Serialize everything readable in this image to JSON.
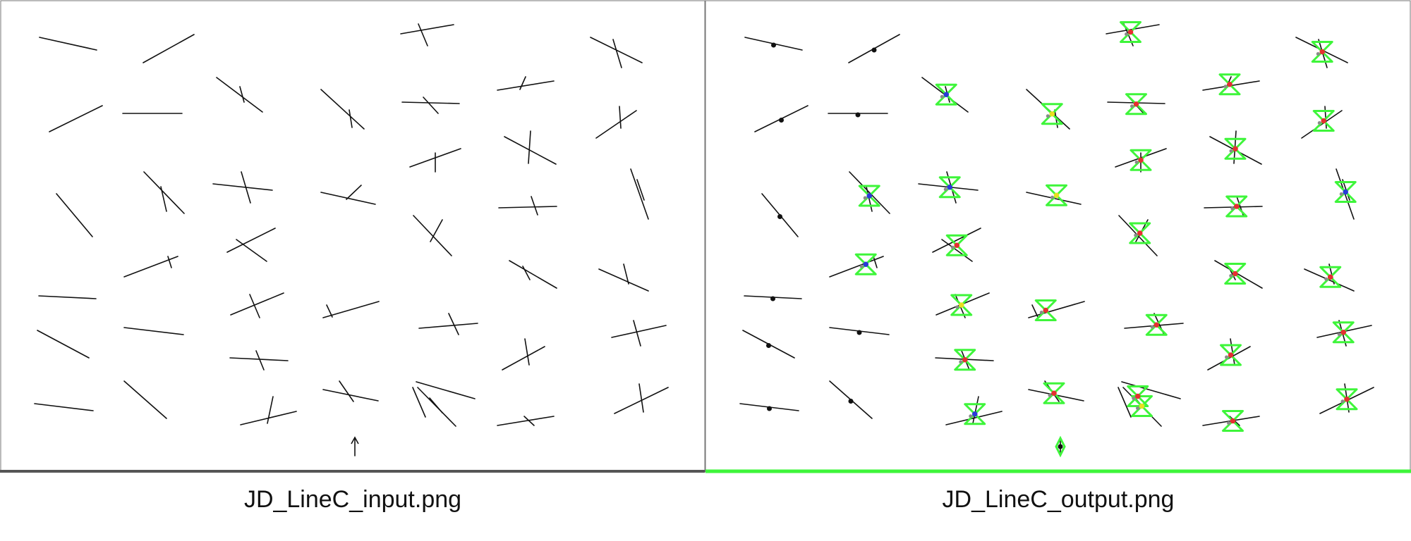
{
  "captions": {
    "input": "JD_LineC_input.png",
    "output": "JD_LineC_output.png"
  },
  "colors": {
    "stroke": "#111111",
    "highlight": "#3ef53a",
    "marker_red": "#e53030",
    "marker_blue": "#2a3ad8",
    "marker_gray": "#8a8a8a",
    "marker_yellow": "#e8e020",
    "marker_black": "#111111"
  },
  "panels": [
    "input",
    "output"
  ],
  "detections": [
    {
      "kind": "single"
    },
    {
      "kind": "single"
    },
    {
      "kind": "cross",
      "marker": "red"
    },
    {
      "kind": "cross",
      "marker": "red"
    },
    {
      "kind": "single"
    },
    {
      "kind": "single"
    },
    {
      "kind": "cross",
      "marker": "blue"
    },
    {
      "kind": "cross",
      "marker": "yellow"
    },
    {
      "kind": "cross",
      "marker": "red"
    },
    {
      "kind": "cross",
      "marker": "red"
    },
    {
      "kind": "cross",
      "marker": "red"
    },
    {
      "kind": "single"
    },
    {
      "kind": "cross",
      "marker": "blue"
    },
    {
      "kind": "cross",
      "marker": "blue"
    },
    {
      "kind": "cross",
      "marker": "yellow"
    },
    {
      "kind": "cross",
      "marker": "red"
    },
    {
      "kind": "cross",
      "marker": "red"
    },
    {
      "kind": "cross",
      "marker": "red"
    },
    {
      "kind": "cross",
      "marker": "blue"
    },
    {
      "kind": "cross",
      "marker": "blue"
    },
    {
      "kind": "cross",
      "marker": "red"
    },
    {
      "kind": "cross",
      "marker": "red"
    },
    {
      "kind": "cross",
      "marker": "red"
    },
    {
      "kind": "single"
    },
    {
      "kind": "cross",
      "marker": "blue"
    },
    {
      "kind": "cross",
      "marker": "yellow"
    },
    {
      "kind": "single"
    },
    {
      "kind": "cross",
      "marker": "red"
    },
    {
      "kind": "cross",
      "marker": "red"
    },
    {
      "kind": "cross",
      "marker": "red"
    },
    {
      "kind": "single"
    },
    {
      "kind": "cross",
      "marker": "blue"
    },
    {
      "kind": "cross",
      "marker": "red"
    },
    {
      "kind": "cross",
      "marker": "red"
    },
    {
      "kind": "cross",
      "marker": "red"
    },
    {
      "kind": "single"
    },
    {
      "kind": "single"
    },
    {
      "kind": "cross",
      "marker": "blue"
    },
    {
      "kind": "cross",
      "marker": "yellow"
    },
    {
      "kind": "cross",
      "marker": "red"
    },
    {
      "kind": "cross",
      "marker": "red"
    },
    {
      "kind": "cross",
      "marker": "red"
    },
    {
      "kind": "arrow",
      "marker": "black"
    }
  ]
}
